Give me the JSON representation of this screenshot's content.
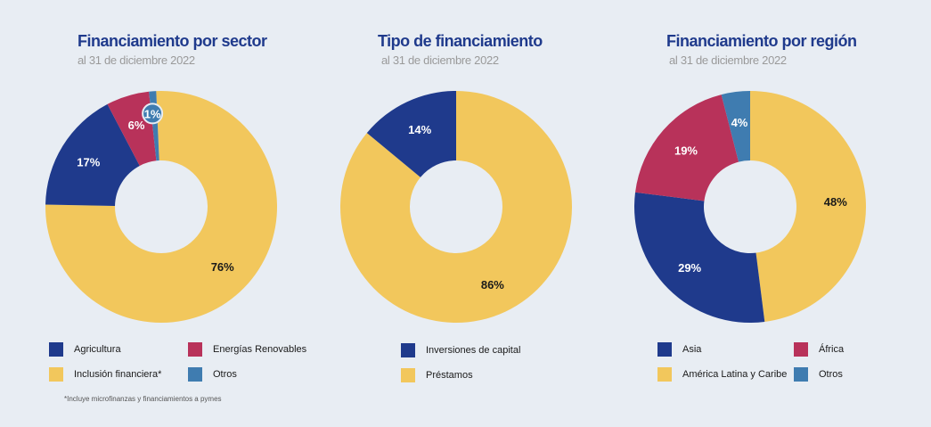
{
  "colors": {
    "navy": "#1f3a8c",
    "yellow": "#f2c75c",
    "crimson": "#b8325a",
    "steel": "#3f7cb0"
  },
  "chart_data": [
    {
      "type": "pie",
      "title": "Financiamiento por sector",
      "subtitle": "al 31 de diciembre 2022",
      "slices": [
        {
          "name": "Inclusión financiera*",
          "value": 76,
          "label": "76%",
          "color": "#f2c75c"
        },
        {
          "name": "Agricultura",
          "value": 17,
          "label": "17%",
          "color": "#1f3a8c"
        },
        {
          "name": "Energías Renovables",
          "value": 6,
          "label": "6%",
          "color": "#b8325a"
        },
        {
          "name": "Otros",
          "value": 1,
          "label": "1%",
          "color": "#3f7cb0"
        }
      ],
      "legend": [
        "Agricultura",
        "Energías Renovables",
        "Inclusión financiera*",
        "Otros"
      ],
      "footnote": "*Incluye microfinanzas y financiamientos a pymes"
    },
    {
      "type": "pie",
      "title": "Tipo de financiamiento",
      "subtitle": "al 31 de diciembre 2022",
      "slices": [
        {
          "name": "Préstamos",
          "value": 86,
          "label": "86%",
          "color": "#f2c75c"
        },
        {
          "name": "Inversiones de capital",
          "value": 14,
          "label": "14%",
          "color": "#1f3a8c"
        }
      ],
      "legend": [
        "Inversiones de capital",
        "Préstamos"
      ]
    },
    {
      "type": "pie",
      "title": "Financiamiento por región",
      "subtitle": "al 31 de diciembre 2022",
      "slices": [
        {
          "name": "América Latina y Caribe",
          "value": 48,
          "label": "48%",
          "color": "#f2c75c"
        },
        {
          "name": "Asia",
          "value": 29,
          "label": "29%",
          "color": "#1f3a8c"
        },
        {
          "name": "África",
          "value": 19,
          "label": "19%",
          "color": "#b8325a"
        },
        {
          "name": "Otros",
          "value": 4,
          "label": "4%",
          "color": "#3f7cb0"
        }
      ],
      "legend": [
        "Asia",
        "África",
        "América Latina y Caribe",
        "Otros"
      ]
    }
  ]
}
